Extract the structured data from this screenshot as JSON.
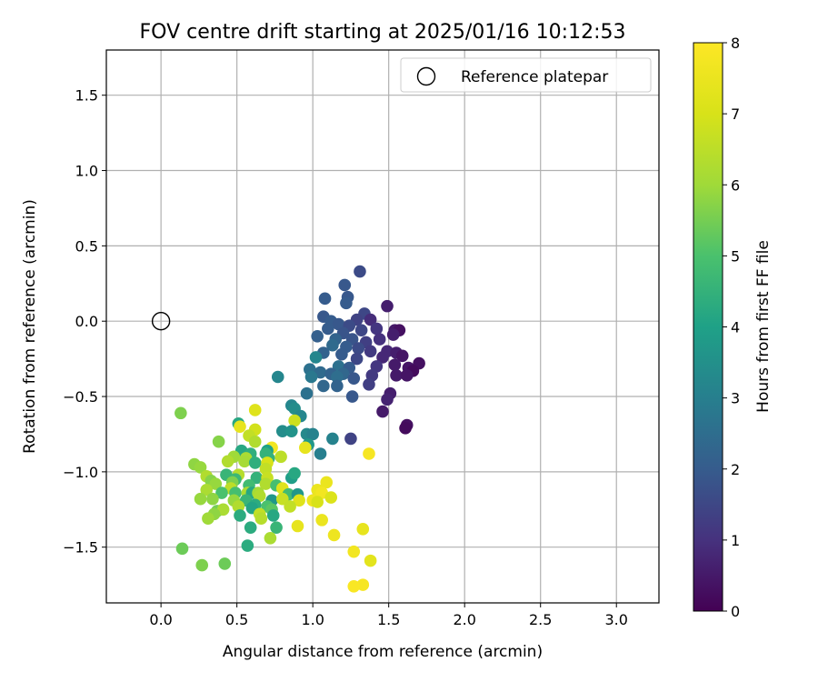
{
  "chart_data": {
    "type": "scatter",
    "title": "FOV centre drift starting at 2025/01/16 10:12:53",
    "xlabel": "Angular distance from reference (arcmin)",
    "ylabel": "Rotation from reference (arcmin)",
    "xlim": [
      -0.36,
      3.28
    ],
    "ylim": [
      -1.87,
      1.8
    ],
    "xticks": [
      "0.0",
      "0.5",
      "1.0",
      "1.5",
      "2.0",
      "2.5",
      "3.0"
    ],
    "yticks": [
      "1.5",
      "1.0",
      "0.5",
      "0.0",
      "−0.5",
      "−1.0",
      "−1.5"
    ],
    "grid": true,
    "legend": {
      "placement": "top-right",
      "label": "Reference platepar"
    },
    "reference_point": [
      0.0,
      0.0
    ],
    "colorbar": {
      "label": "Hours from first FF file",
      "range": [
        0,
        8
      ],
      "ticks": [
        "0",
        "1",
        "2",
        "3",
        "4",
        "5",
        "6",
        "7",
        "8"
      ],
      "colormap": "viridis"
    },
    "points": [
      [
        1.31,
        0.33,
        1.6
      ],
      [
        1.21,
        0.24,
        1.9
      ],
      [
        1.23,
        0.16,
        1.9
      ],
      [
        1.08,
        0.15,
        2.0
      ],
      [
        1.49,
        0.1,
        0.6
      ],
      [
        1.22,
        0.12,
        2.0
      ],
      [
        1.34,
        0.05,
        1.5
      ],
      [
        1.29,
        0.01,
        1.4
      ],
      [
        1.38,
        0.01,
        0.9
      ],
      [
        1.07,
        0.03,
        1.9
      ],
      [
        1.12,
        0.0,
        2.0
      ],
      [
        1.17,
        -0.02,
        1.9
      ],
      [
        1.24,
        -0.03,
        1.6
      ],
      [
        1.54,
        -0.06,
        0.5
      ],
      [
        1.57,
        -0.06,
        0.3
      ],
      [
        1.1,
        -0.05,
        2.0
      ],
      [
        1.2,
        -0.08,
        1.8
      ],
      [
        1.32,
        -0.06,
        1.5
      ],
      [
        1.42,
        -0.05,
        1.1
      ],
      [
        1.53,
        -0.09,
        0.6
      ],
      [
        1.03,
        -0.1,
        2.1
      ],
      [
        1.15,
        -0.12,
        2.2
      ],
      [
        1.26,
        -0.12,
        1.8
      ],
      [
        1.35,
        -0.14,
        1.3
      ],
      [
        1.44,
        -0.12,
        1.0
      ],
      [
        1.13,
        -0.16,
        2.4
      ],
      [
        1.22,
        -0.17,
        2.0
      ],
      [
        1.3,
        -0.18,
        1.6
      ],
      [
        1.38,
        -0.2,
        1.2
      ],
      [
        1.49,
        -0.2,
        0.8
      ],
      [
        1.55,
        -0.21,
        0.6
      ],
      [
        1.59,
        -0.23,
        0.4
      ],
      [
        1.07,
        -0.21,
        2.2
      ],
      [
        1.19,
        -0.22,
        2.0
      ],
      [
        1.29,
        -0.25,
        1.5
      ],
      [
        1.46,
        -0.24,
        0.8
      ],
      [
        1.7,
        -0.28,
        0.3
      ],
      [
        1.54,
        -0.29,
        0.5
      ],
      [
        1.63,
        -0.31,
        0.4
      ],
      [
        1.66,
        -0.33,
        0.2
      ],
      [
        1.02,
        -0.24,
        3.2
      ],
      [
        1.17,
        -0.3,
        2.6
      ],
      [
        1.42,
        -0.3,
        1.1
      ],
      [
        1.24,
        -0.31,
        2.0
      ],
      [
        0.98,
        -0.32,
        2.6
      ],
      [
        1.05,
        -0.34,
        2.4
      ],
      [
        1.12,
        -0.35,
        2.2
      ],
      [
        1.2,
        -0.35,
        2.3
      ],
      [
        1.39,
        -0.36,
        1.2
      ],
      [
        1.55,
        -0.36,
        0.5
      ],
      [
        1.62,
        -0.36,
        0.4
      ],
      [
        0.77,
        -0.37,
        3.2
      ],
      [
        0.99,
        -0.37,
        2.8
      ],
      [
        1.16,
        -0.37,
        2.5
      ],
      [
        1.27,
        -0.38,
        1.9
      ],
      [
        1.37,
        -0.42,
        1.3
      ],
      [
        1.07,
        -0.43,
        2.3
      ],
      [
        1.16,
        -0.43,
        2.2
      ],
      [
        0.96,
        -0.48,
        2.6
      ],
      [
        1.26,
        -0.5,
        1.9
      ],
      [
        1.51,
        -0.48,
        0.6
      ],
      [
        1.49,
        -0.52,
        0.7
      ],
      [
        1.46,
        -0.6,
        0.5
      ],
      [
        1.62,
        -0.69,
        0.3
      ],
      [
        1.61,
        -0.71,
        0.2
      ],
      [
        1.25,
        -0.78,
        1.4
      ],
      [
        0.86,
        -0.56,
        3.2
      ],
      [
        0.88,
        -0.58,
        3.4
      ],
      [
        0.92,
        -0.63,
        3.2
      ],
      [
        0.88,
        -0.66,
        6.8
      ],
      [
        0.8,
        -0.73,
        3.4
      ],
      [
        0.86,
        -0.73,
        3.6
      ],
      [
        0.96,
        -0.75,
        3.3
      ],
      [
        1.0,
        -0.75,
        3.1
      ],
      [
        1.13,
        -0.78,
        3.1
      ],
      [
        0.97,
        -0.82,
        3.7
      ],
      [
        0.95,
        -0.84,
        7.4
      ],
      [
        1.05,
        -0.88,
        3.0
      ],
      [
        0.13,
        -0.61,
        5.6
      ],
      [
        0.62,
        -0.59,
        7.2
      ],
      [
        0.51,
        -0.68,
        4.2
      ],
      [
        0.52,
        -0.7,
        7.4
      ],
      [
        0.62,
        -0.72,
        6.9
      ],
      [
        0.58,
        -0.76,
        6.6
      ],
      [
        0.38,
        -0.8,
        5.7
      ],
      [
        0.62,
        -0.8,
        6.3
      ],
      [
        0.73,
        -0.84,
        7.7
      ],
      [
        0.7,
        -0.86,
        4.0
      ],
      [
        0.53,
        -0.86,
        4.2
      ],
      [
        0.59,
        -0.88,
        4.4
      ],
      [
        0.69,
        -0.88,
        4.5
      ],
      [
        0.48,
        -0.9,
        6.0
      ],
      [
        0.56,
        -0.91,
        6.2
      ],
      [
        0.71,
        -0.91,
        4.5
      ],
      [
        0.79,
        -0.9,
        6.5
      ],
      [
        0.44,
        -0.93,
        6.3
      ],
      [
        0.55,
        -0.93,
        6.1
      ],
      [
        0.62,
        -0.94,
        4.4
      ],
      [
        0.7,
        -0.94,
        7.0
      ],
      [
        0.22,
        -0.95,
        5.8
      ],
      [
        0.26,
        -0.97,
        5.9
      ],
      [
        0.69,
        -0.98,
        6.6
      ],
      [
        1.37,
        -0.88,
        7.8
      ],
      [
        0.43,
        -1.02,
        4.6
      ],
      [
        0.51,
        -1.02,
        6.4
      ],
      [
        0.3,
        -1.03,
        6.3
      ],
      [
        0.63,
        -1.04,
        4.5
      ],
      [
        0.7,
        -1.04,
        6.7
      ],
      [
        0.86,
        -1.04,
        3.9
      ],
      [
        0.49,
        -1.05,
        4.7
      ],
      [
        0.88,
        -1.01,
        4.2
      ],
      [
        0.33,
        -1.06,
        5.7
      ],
      [
        0.47,
        -1.07,
        5.6
      ],
      [
        0.36,
        -1.08,
        5.9
      ],
      [
        0.58,
        -1.09,
        4.8
      ],
      [
        0.69,
        -1.08,
        6.3
      ],
      [
        0.76,
        -1.09,
        4.9
      ],
      [
        1.03,
        -1.12,
        7.5
      ],
      [
        1.09,
        -1.07,
        7.5
      ],
      [
        0.8,
        -1.11,
        7.2
      ],
      [
        0.46,
        -1.11,
        6.5
      ],
      [
        0.3,
        -1.12,
        6.2
      ],
      [
        0.4,
        -1.14,
        5.0
      ],
      [
        0.49,
        -1.14,
        4.9
      ],
      [
        0.57,
        -1.14,
        6.2
      ],
      [
        0.6,
        -1.14,
        4.2
      ],
      [
        0.64,
        -1.14,
        6.1
      ],
      [
        0.84,
        -1.15,
        4.8
      ],
      [
        0.9,
        -1.15,
        3.7
      ],
      [
        1.06,
        -1.14,
        7.7
      ],
      [
        0.26,
        -1.18,
        5.9
      ],
      [
        0.34,
        -1.18,
        5.8
      ],
      [
        0.48,
        -1.19,
        5.9
      ],
      [
        0.56,
        -1.19,
        4.6
      ],
      [
        0.65,
        -1.16,
        6.3
      ],
      [
        0.73,
        -1.19,
        3.7
      ],
      [
        0.8,
        -1.18,
        6.7
      ],
      [
        0.91,
        -1.19,
        7.2
      ],
      [
        1.0,
        -1.19,
        7.6
      ],
      [
        1.03,
        -1.2,
        7.0
      ],
      [
        1.12,
        -1.17,
        7.1
      ],
      [
        0.51,
        -1.23,
        6.3
      ],
      [
        0.62,
        -1.22,
        4.3
      ],
      [
        0.7,
        -1.23,
        5.0
      ],
      [
        0.73,
        -1.25,
        5.2
      ],
      [
        0.85,
        -1.23,
        6.6
      ],
      [
        0.37,
        -1.26,
        5.5
      ],
      [
        0.41,
        -1.25,
        6.2
      ],
      [
        0.6,
        -1.24,
        4.1
      ],
      [
        0.35,
        -1.28,
        5.8
      ],
      [
        0.65,
        -1.28,
        6.6
      ],
      [
        0.52,
        -1.29,
        4.3
      ],
      [
        0.74,
        -1.29,
        4.2
      ],
      [
        0.31,
        -1.31,
        6.0
      ],
      [
        0.66,
        -1.31,
        6.4
      ],
      [
        1.06,
        -1.32,
        7.5
      ],
      [
        0.59,
        -1.37,
        4.3
      ],
      [
        0.76,
        -1.37,
        4.6
      ],
      [
        0.9,
        -1.36,
        7.4
      ],
      [
        0.72,
        -1.44,
        6.2
      ],
      [
        1.14,
        -1.42,
        7.6
      ],
      [
        1.33,
        -1.38,
        7.4
      ],
      [
        0.57,
        -1.49,
        4.3
      ],
      [
        0.14,
        -1.51,
        5.4
      ],
      [
        1.27,
        -1.53,
        7.7
      ],
      [
        1.38,
        -1.59,
        7.3
      ],
      [
        0.27,
        -1.62,
        5.6
      ],
      [
        0.42,
        -1.61,
        5.4
      ],
      [
        1.33,
        -1.75,
        7.8
      ],
      [
        1.27,
        -1.76,
        7.9
      ]
    ]
  }
}
